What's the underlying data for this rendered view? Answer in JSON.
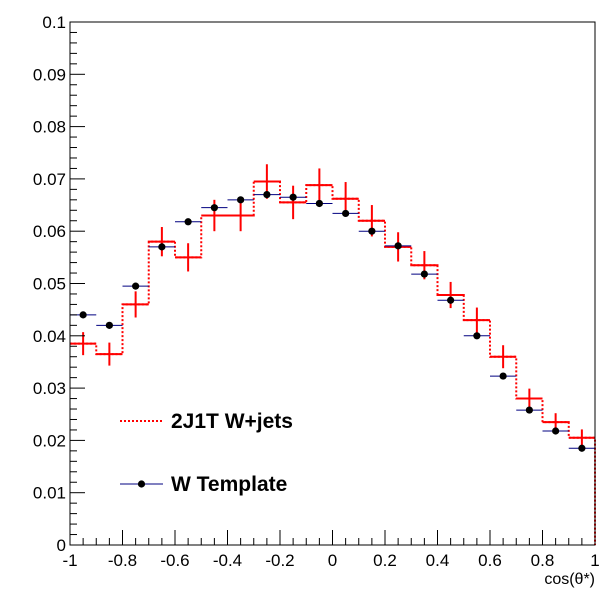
{
  "chart_data": {
    "type": "line",
    "xlabel": "cos(θ*)",
    "ylabel": "",
    "xlim": [
      -1,
      1
    ],
    "ylim": [
      0,
      0.1
    ],
    "xticks": [
      "-1",
      "-0.8",
      "-0.6",
      "-0.4",
      "-0.2",
      "0",
      "0.2",
      "0.4",
      "0.6",
      "0.8",
      "1"
    ],
    "yticks": [
      "0",
      "0.01",
      "0.02",
      "0.03",
      "0.04",
      "0.05",
      "0.06",
      "0.07",
      "0.08",
      "0.09",
      "0.1"
    ],
    "bin_edges": [
      -1,
      -0.9,
      -0.8,
      -0.7,
      -0.6,
      -0.5,
      -0.4,
      -0.3,
      -0.2,
      -0.1,
      0,
      0.1,
      0.2,
      0.3,
      0.4,
      0.5,
      0.6,
      0.7,
      0.8,
      0.9,
      1
    ],
    "bin_centers": [
      -0.95,
      -0.85,
      -0.75,
      -0.65,
      -0.55,
      -0.45,
      -0.35,
      -0.25,
      -0.15,
      -0.05,
      0.05,
      0.15,
      0.25,
      0.35,
      0.45,
      0.55,
      0.65,
      0.75,
      0.85,
      0.95
    ],
    "legend_position": "bottom-left",
    "series": [
      {
        "name": "2J1T W+jets",
        "style": "dotted step with error bars",
        "color": "#ff0000",
        "values": [
          0.0385,
          0.0365,
          0.046,
          0.058,
          0.055,
          0.063,
          0.063,
          0.0695,
          0.0655,
          0.0688,
          0.0662,
          0.062,
          0.057,
          0.0535,
          0.0478,
          0.043,
          0.036,
          0.028,
          0.0235,
          0.0205
        ],
        "errors": [
          0.0022,
          0.0022,
          0.0025,
          0.0028,
          0.0027,
          0.003,
          0.003,
          0.0033,
          0.0032,
          0.0032,
          0.0032,
          0.003,
          0.0028,
          0.0027,
          0.0025,
          0.0024,
          0.0022,
          0.0019,
          0.0017,
          0.0016
        ]
      },
      {
        "name": "W Template",
        "style": "markers with horizontal bars",
        "color": "#000000",
        "bar_color": "#000080",
        "values": [
          0.044,
          0.042,
          0.0495,
          0.057,
          0.0618,
          0.0645,
          0.066,
          0.067,
          0.0665,
          0.0653,
          0.0634,
          0.06,
          0.0572,
          0.0518,
          0.0468,
          0.04,
          0.0323,
          0.0258,
          0.0218,
          0.0185
        ],
        "errors": [
          0.0003,
          0.0003,
          0.0003,
          0.0003,
          0.0003,
          0.0003,
          0.0003,
          0.0003,
          0.0003,
          0.0003,
          0.0003,
          0.0003,
          0.0003,
          0.0003,
          0.0003,
          0.0003,
          0.0003,
          0.0003,
          0.0003,
          0.0003
        ]
      }
    ]
  }
}
